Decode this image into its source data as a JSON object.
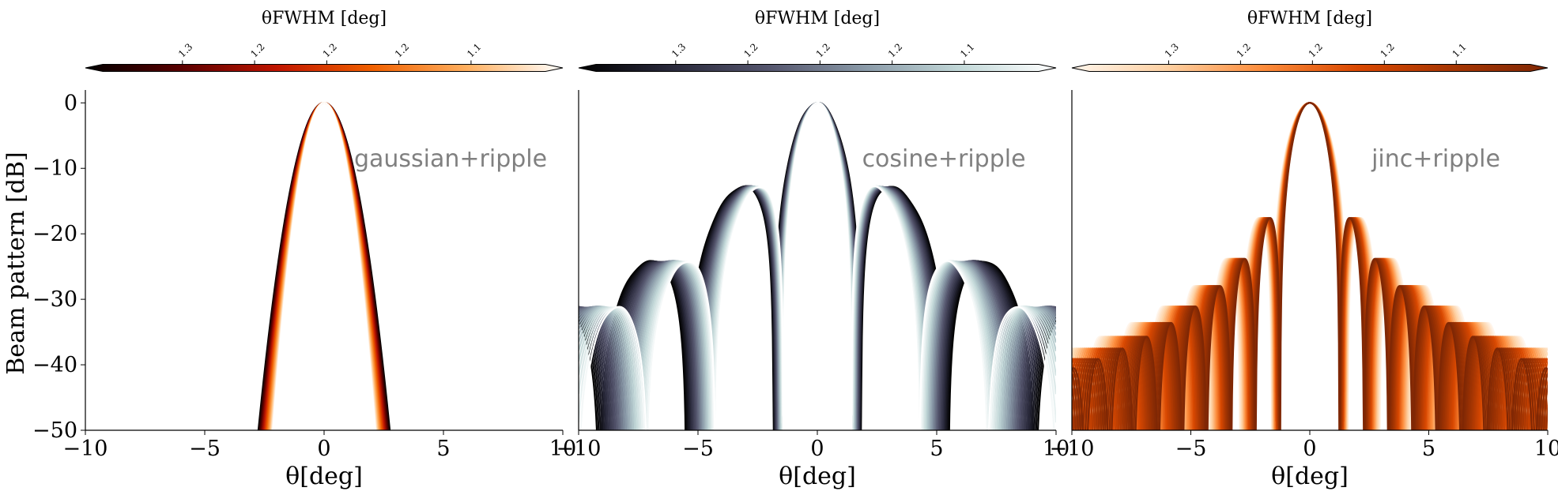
{
  "ylabel": "Beam pattern [dB]",
  "chart_data": [
    {
      "type": "line",
      "annotation": "gaussian+ripple",
      "model": "gaussian",
      "cmap": "hot",
      "reverse_cmap": false,
      "cmap_stops": [
        "#000000",
        "#5a0000",
        "#c01500",
        "#f06000",
        "#ffb060",
        "#ffffff"
      ],
      "colorbar_title": "θFWHM [deg]",
      "colorbar_ticks": [
        "1.3",
        "1.2",
        "1.2",
        "1.2",
        "1.1"
      ],
      "fwhm_range": [
        1.05,
        1.35
      ],
      "n_curves": 28,
      "xlabel": "θ[deg]",
      "ylabel": "Beam pattern [dB]",
      "xlim": [
        -10,
        10
      ],
      "ylim": [
        -50,
        1
      ],
      "xticks": [
        -10,
        -5,
        0,
        5,
        10
      ],
      "yticks": [
        0,
        -10,
        -20,
        -30,
        -40,
        -50
      ],
      "x_tick_labels": [
        "−10",
        "−5",
        "0",
        "5",
        "10"
      ],
      "y_tick_labels": [
        "0",
        "−10",
        "−20",
        "−30",
        "−40",
        "−50"
      ]
    },
    {
      "type": "line",
      "annotation": "cosine+ripple",
      "model": "cosine",
      "cmap": "bone",
      "reverse_cmap": false,
      "cmap_stops": [
        "#000000",
        "#2a2a3c",
        "#55566e",
        "#8a9aa8",
        "#c2d8d8",
        "#ffffff"
      ],
      "colorbar_title": "θFWHM [deg]",
      "colorbar_ticks": [
        "1.3",
        "1.2",
        "1.2",
        "1.2",
        "1.1"
      ],
      "fwhm_range": [
        1.05,
        1.35
      ],
      "n_curves": 28,
      "xlabel": "θ[deg]",
      "ylabel": "",
      "xlim": [
        -10,
        10
      ],
      "ylim": [
        -50,
        1
      ],
      "xticks": [
        -10,
        -5,
        0,
        5,
        10
      ],
      "yticks": [],
      "x_tick_labels": [
        "−10",
        "−5",
        "0",
        "5",
        "10"
      ],
      "y_tick_labels": []
    },
    {
      "type": "line",
      "annotation": "jinc+ripple",
      "model": "jinc",
      "cmap": "oranges",
      "reverse_cmap": false,
      "cmap_stops": [
        "#fff5eb",
        "#fdd0a2",
        "#fd8d3c",
        "#d94801",
        "#a63603",
        "#7f2704"
      ],
      "colorbar_title": "θFWHM [deg]",
      "colorbar_ticks": [
        "1.3",
        "1.2",
        "1.2",
        "1.2",
        "1.1"
      ],
      "fwhm_range": [
        1.05,
        1.35
      ],
      "n_curves": 28,
      "xlabel": "θ[deg]",
      "ylabel": "",
      "xlim": [
        -10,
        10
      ],
      "ylim": [
        -50,
        1
      ],
      "xticks": [
        -10,
        -5,
        0,
        5,
        10
      ],
      "yticks": [],
      "x_tick_labels": [
        "−10",
        "−5",
        "0",
        "5",
        "10"
      ],
      "y_tick_labels": []
    }
  ]
}
